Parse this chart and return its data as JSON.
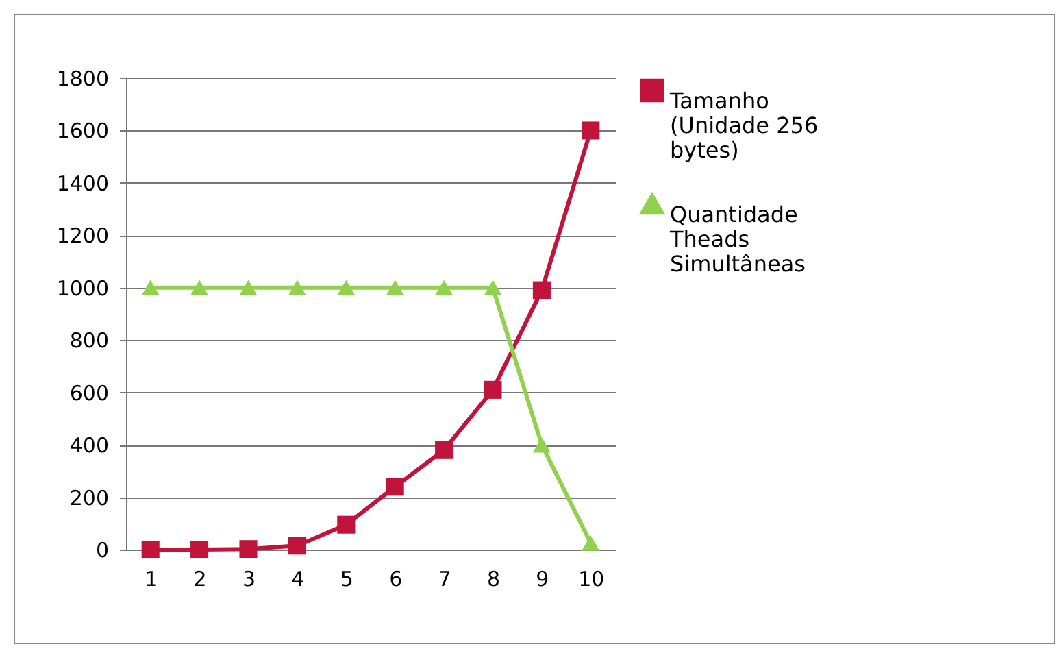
{
  "chart_data": {
    "type": "line",
    "categories": [
      "1",
      "2",
      "3",
      "4",
      "5",
      "6",
      "7",
      "8",
      "9",
      "10"
    ],
    "series": [
      {
        "name": "Tamanho (Unidade 256 bytes)",
        "color": "#c0143c",
        "marker": "square",
        "values": [
          0,
          0,
          2,
          15,
          95,
          240,
          380,
          610,
          990,
          1600
        ]
      },
      {
        "name": "Quantidade Theads Simultâneas",
        "color": "#92d050",
        "marker": "triangle",
        "values": [
          1000,
          1000,
          1000,
          1000,
          1000,
          1000,
          1000,
          1000,
          400,
          25
        ]
      }
    ],
    "ylim": [
      0,
      1800
    ],
    "yticks": [
      0,
      200,
      400,
      600,
      800,
      1000,
      1200,
      1400,
      1600,
      1800
    ],
    "grid": "y",
    "legend": "right"
  }
}
